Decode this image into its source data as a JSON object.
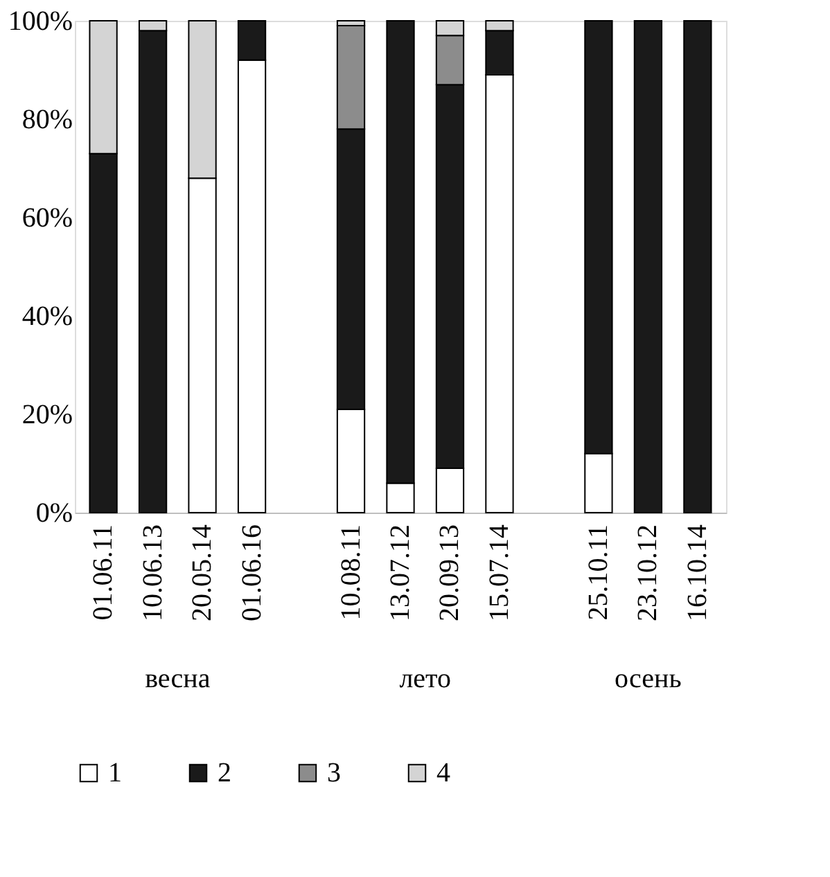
{
  "chart_data": {
    "type": "bar",
    "stacked": true,
    "categories": [
      "01.06.11",
      "10.06.13",
      "20.05.14",
      "01.06.16",
      null,
      "10.08.11",
      "13.07.12",
      "20.09.13",
      "15.07.14",
      null,
      "25.10.11",
      "23.10.12",
      "16.10.14"
    ],
    "series": [
      {
        "name": "1",
        "color": "#ffffff",
        "values": [
          null,
          null,
          68,
          92,
          null,
          21,
          6,
          9,
          89,
          null,
          12,
          null,
          null
        ]
      },
      {
        "name": "2",
        "color": "#1a1a1a",
        "values": [
          73,
          98,
          null,
          8,
          null,
          57,
          94,
          78,
          9,
          null,
          88,
          100,
          100
        ]
      },
      {
        "name": "3",
        "color": "#8c8c8c",
        "values": [
          null,
          null,
          null,
          null,
          null,
          21,
          null,
          10,
          null,
          null,
          null,
          null,
          null
        ]
      },
      {
        "name": "4",
        "color": "#d4d4d4",
        "values": [
          27,
          2,
          32,
          null,
          null,
          1,
          null,
          3,
          2,
          null,
          null,
          null,
          null
        ]
      }
    ],
    "ylim": [
      0,
      100
    ],
    "yticks": [
      {
        "value": 0,
        "label": "0%"
      },
      {
        "value": 20,
        "label": "20%"
      },
      {
        "value": 40,
        "label": "40%"
      },
      {
        "value": 60,
        "label": "60%"
      },
      {
        "value": 80,
        "label": "80%"
      },
      {
        "value": 100,
        "label": "100%"
      }
    ],
    "annotations": [
      "весна",
      "лето",
      "осень"
    ],
    "legend": "bottom",
    "grid": false
  }
}
